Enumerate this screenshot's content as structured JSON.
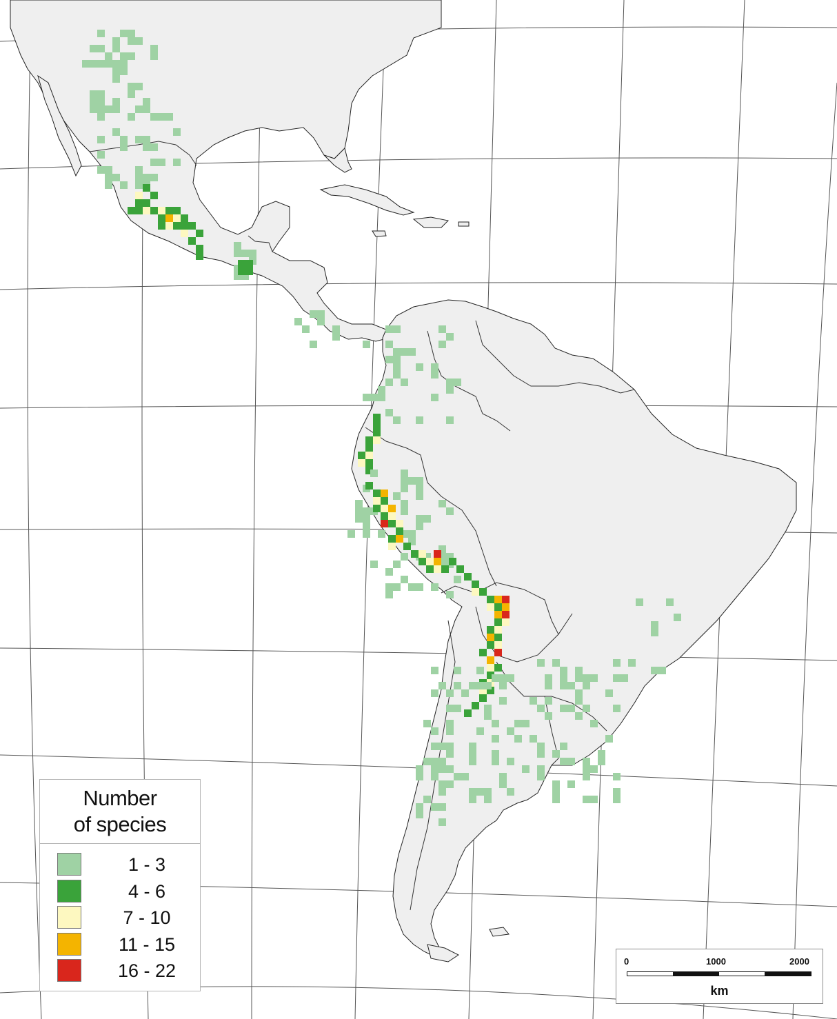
{
  "map": {
    "land_color": "#efefef",
    "coast_color": "#222222",
    "graticule_color": "#555555"
  },
  "legend": {
    "title_line1": "Number",
    "title_line2": "of species",
    "classes": [
      {
        "label": "1 - 3",
        "color": "#9fd2a4"
      },
      {
        "label": "4 - 6",
        "color": "#3aa33a"
      },
      {
        "label": "7 - 10",
        "color": "#fdf8c0"
      },
      {
        "label": "11 - 15",
        "color": "#f4b400"
      },
      {
        "label": "16 - 22",
        "color": "#d9261c"
      }
    ]
  },
  "scale_bar": {
    "ticks": [
      "0",
      "1000",
      "2000"
    ],
    "unit": "km"
  }
}
